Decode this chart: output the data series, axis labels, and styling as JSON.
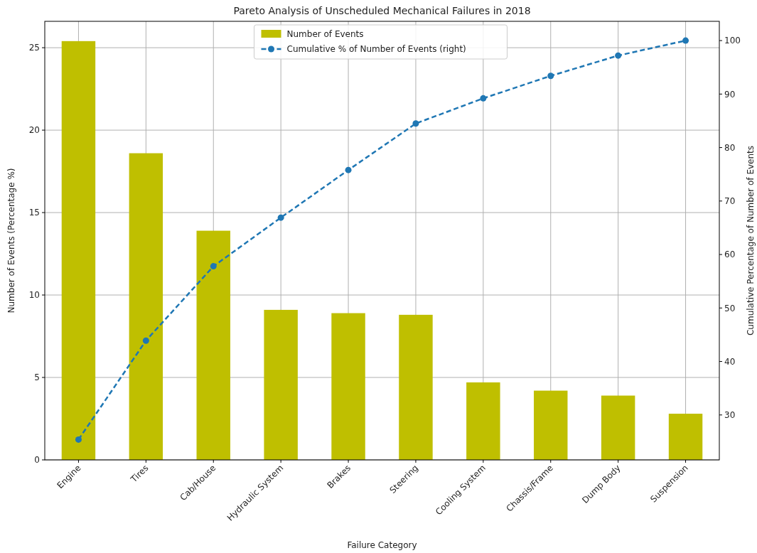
{
  "chart_data": {
    "type": "bar",
    "title": "Pareto Analysis of Unscheduled Mechanical Failures in 2018",
    "xlabel": "Failure Category",
    "ylabel": "Number of Events (Percentage %)",
    "y2label": "Cumulative Percentage of Number of Events",
    "categories": [
      "Engine",
      "Tires",
      "Cab/House",
      "Hydraulic System",
      "Brakes",
      "Steering",
      "Cooling System",
      "Chassis/Frame",
      "Dump Body",
      "Suspension"
    ],
    "series": [
      {
        "name": "Number of Events",
        "color": "#bfbf00",
        "values": [
          25.4,
          18.6,
          13.9,
          9.1,
          8.9,
          8.8,
          4.7,
          4.2,
          3.9,
          2.8
        ]
      },
      {
        "name": "Cumulative % of Number of Events (right)",
        "type": "line",
        "axis": "y2",
        "color": "#1f77b4",
        "marker": "circle",
        "line_style": "dashed",
        "values": [
          25.4,
          43.9,
          57.8,
          66.9,
          75.8,
          84.5,
          89.2,
          93.4,
          97.2,
          100
        ]
      }
    ],
    "ylim": [
      0,
      26.6
    ],
    "yticks": [
      0,
      5,
      10,
      15,
      20,
      25
    ],
    "y2lim": [
      21.6,
      103.6
    ],
    "y2ticks": [
      30,
      40,
      50,
      60,
      70,
      80,
      90,
      100
    ],
    "grid": true,
    "legend": "top"
  }
}
